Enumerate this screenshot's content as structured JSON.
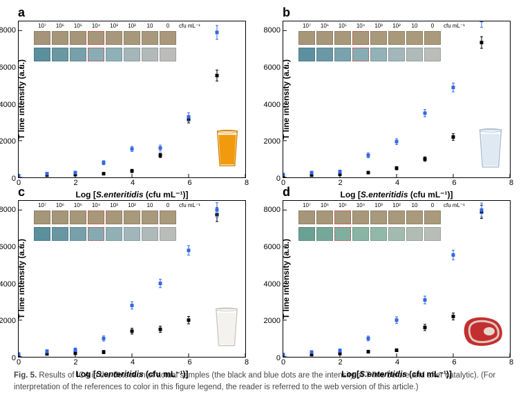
{
  "caption": {
    "label": "Fig. 5.",
    "text_main": " Results of ICA in the detection of actual samples (the black and blue dots are the intensity of T-line before and after catalytic). (For interpretation of the references to color in this figure legend, the reader is referred to the web version of this article.)"
  },
  "axis": {
    "ylabel": "T line intensity (a.u.)",
    "xlabel_prefix": "Log [",
    "xlabel_species": "S.enteritidis",
    "xlabel_suffix_html": " (cfu mL⁻¹)]",
    "xlim": [
      0,
      8
    ],
    "ylim": [
      0,
      8500
    ],
    "xticks": [
      0,
      2,
      4,
      6,
      8
    ],
    "yticks": [
      0,
      2000,
      4000,
      6000,
      8000
    ],
    "label_fontsize": 12,
    "tick_fontsize": 11
  },
  "series_style": {
    "before": {
      "color": "#000000",
      "marker": "square",
      "size": 5
    },
    "after": {
      "color": "#3366e6",
      "marker": "square",
      "size": 5
    },
    "errorbar_width": 4
  },
  "strip_header": {
    "labels": [
      "10⁷",
      "10⁶",
      "10⁵",
      "10⁴",
      "10³",
      "10²",
      "10",
      "0"
    ],
    "unit": "cfu mL⁻¹"
  },
  "panels": {
    "a": {
      "letter": "a",
      "sample": "orange-juice",
      "xlabel_suffix_html": " (cfu mL⁻¹)]",
      "x": [
        0,
        1,
        2,
        3,
        4,
        5,
        6,
        7
      ],
      "before_y": [
        60,
        120,
        150,
        200,
        350,
        1200,
        3150,
        5550
      ],
      "before_err": [
        40,
        50,
        60,
        70,
        90,
        120,
        180,
        300
      ],
      "after_y": [
        100,
        200,
        260,
        800,
        1550,
        1600,
        3300,
        7900
      ],
      "after_err": [
        60,
        70,
        80,
        110,
        140,
        160,
        220,
        380
      ],
      "strip_row1_colors": [
        "#a59578",
        "#a69679",
        "#a69679",
        "#a7977a",
        "#a8987b",
        "#a8987b",
        "#a9997c",
        "#a9997c"
      ],
      "strip_row2_colors": [
        "#5a8f9b",
        "#6a97a2",
        "#78a0aa",
        "#8aacb4",
        "#8fb0b7",
        "#a5b6b9",
        "#b2bab9",
        "#bcbdba"
      ],
      "highlight_row1_idx": 3,
      "highlight_row2_idx": 3
    },
    "b": {
      "letter": "b",
      "sample": "water",
      "xlabel_suffix_html": " (cfu mL⁻¹)]",
      "x": [
        0,
        1,
        2,
        3,
        4,
        5,
        6,
        7
      ],
      "before_y": [
        80,
        120,
        160,
        260,
        500,
        1000,
        2200,
        7350
      ],
      "before_err": [
        50,
        50,
        60,
        70,
        90,
        120,
        180,
        320
      ],
      "after_y": [
        150,
        260,
        310,
        1200,
        1950,
        3500,
        4900,
        8550
      ],
      "after_err": [
        70,
        80,
        90,
        130,
        160,
        200,
        240,
        380
      ],
      "strip_row1_colors": [
        "#a79779",
        "#a79779",
        "#a8987a",
        "#a8987a",
        "#a9997b",
        "#a9997b",
        "#aa9a7c",
        "#aa9a7c"
      ],
      "strip_row2_colors": [
        "#5c90a0",
        "#6b98a6",
        "#79a2ad",
        "#87acb4",
        "#93b2b8",
        "#a3b7ba",
        "#b0bab9",
        "#bbbdba"
      ],
      "highlight_row1_idx": 3,
      "highlight_row2_idx": 3
    },
    "c": {
      "letter": "c",
      "sample": "milk",
      "xlabel_suffix_html": " (cfu mL⁻¹)]",
      "x": [
        0,
        1,
        2,
        3,
        4,
        5,
        6,
        7
      ],
      "before_y": [
        80,
        160,
        200,
        260,
        1400,
        1500,
        2000,
        7750
      ],
      "before_err": [
        60,
        70,
        80,
        90,
        160,
        170,
        200,
        380
      ],
      "after_y": [
        150,
        300,
        380,
        1000,
        2800,
        4000,
        5800,
        8000
      ],
      "after_err": [
        80,
        90,
        100,
        140,
        200,
        230,
        260,
        400
      ],
      "strip_row1_colors": [
        "#a69679",
        "#a69679",
        "#a79779",
        "#a8987a",
        "#a8987a",
        "#a9997b",
        "#a9997b",
        "#aa9a7c"
      ],
      "strip_row2_colors": [
        "#5a8f9c",
        "#6996a3",
        "#77a0aa",
        "#86aab2",
        "#90b0b6",
        "#a1b6b9",
        "#afb9b9",
        "#babcba"
      ],
      "highlight_row1_idx": 3,
      "highlight_row2_idx": 3
    },
    "d": {
      "letter": "d",
      "sample": "beef",
      "xlabel_suffix_html": " (cfu mL⁻¹)]",
      "xlabel_prefix_override": "Log[",
      "x": [
        0,
        1,
        2,
        3,
        4,
        5,
        6,
        7
      ],
      "before_y": [
        60,
        120,
        180,
        280,
        360,
        1600,
        2200,
        7900
      ],
      "before_err": [
        50,
        60,
        70,
        80,
        80,
        170,
        190,
        360
      ],
      "after_y": [
        120,
        260,
        340,
        1000,
        2000,
        3100,
        5550,
        8000
      ],
      "after_err": [
        70,
        80,
        90,
        130,
        180,
        210,
        260,
        380
      ],
      "strip_row1_colors": [
        "#a69679",
        "#a79779",
        "#a8987a",
        "#a8987a",
        "#a9997b",
        "#a9997b",
        "#aa9a7c",
        "#aa9a7c"
      ],
      "strip_row2_colors": [
        "#6aa192",
        "#75a898",
        "#80af9f",
        "#8ab4a5",
        "#92b8aa",
        "#a2bbb0",
        "#b0bcb4",
        "#b9bdb7"
      ],
      "highlight_row1_idx": 2,
      "highlight_row2_idx": 2
    }
  },
  "samples": {
    "orange-juice": {
      "glass_fill": "#f29a0e",
      "glass_stroke": "#d47f00",
      "w": 36,
      "h": 58
    },
    "water": {
      "glass_fill": "#dfe9f3",
      "glass_stroke": "#a8bdd1",
      "w": 40,
      "h": 58
    },
    "milk": {
      "glass_fill": "#f4f2ee",
      "glass_stroke": "#cac6bf",
      "w": 38,
      "h": 60
    },
    "beef": {
      "fill1": "#c32f2f",
      "fill2": "#e3d9cf",
      "w": 62,
      "h": 46
    }
  },
  "colors": {
    "border": "#000000",
    "highlight": "#d9534f",
    "background": "#ffffff"
  }
}
